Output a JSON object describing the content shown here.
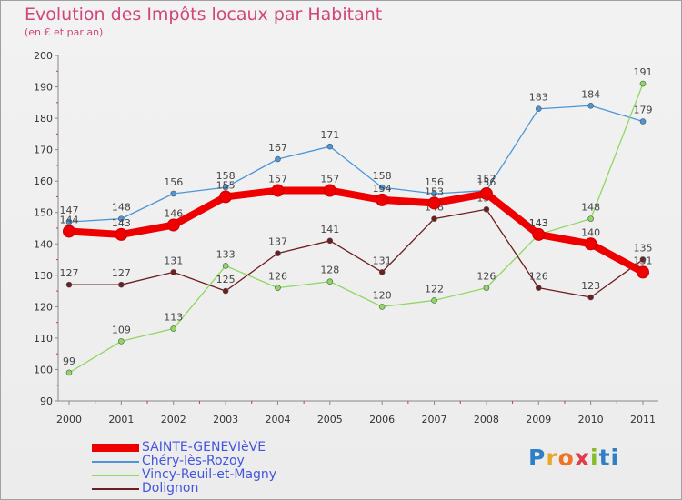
{
  "chart_data": {
    "type": "line",
    "title": "Evolution des Impôts locaux par Habitant",
    "subtitle": "(en € et par an)",
    "xlabel": "",
    "ylabel": "",
    "x": [
      "2000",
      "2001",
      "2002",
      "2003",
      "2004",
      "2005",
      "2006",
      "2007",
      "2008",
      "2009",
      "2010",
      "2011"
    ],
    "ylim": [
      90,
      200
    ],
    "yticks": [
      90,
      100,
      110,
      120,
      130,
      140,
      150,
      160,
      170,
      180,
      190,
      200
    ],
    "grid": false,
    "legend_position": "bottom-left",
    "series": [
      {
        "name": "SAINTE-GENEVIèVE",
        "color": "#ee0000",
        "values": [
          144,
          143,
          146,
          155,
          157,
          157,
          154,
          153,
          156,
          143,
          140,
          131
        ]
      },
      {
        "name": "Chéry-lès-Rozoy",
        "color": "#4c96d7",
        "values": [
          147,
          148,
          156,
          158,
          167,
          171,
          158,
          156,
          157,
          183,
          184,
          179
        ]
      },
      {
        "name": "Vincy-Reuil-et-Magny",
        "color": "#8ed860",
        "values": [
          99,
          109,
          113,
          133,
          126,
          128,
          120,
          122,
          126,
          143,
          148,
          191
        ]
      },
      {
        "name": "Dolignon",
        "color": "#6e1e1e",
        "values": [
          127,
          127,
          131,
          125,
          137,
          141,
          131,
          148,
          151,
          126,
          123,
          135
        ]
      }
    ]
  },
  "logo": {
    "p1": "P",
    "p2": "r",
    "p3": "o",
    "p4": "x",
    "p5": "i",
    "p6": "ti"
  }
}
